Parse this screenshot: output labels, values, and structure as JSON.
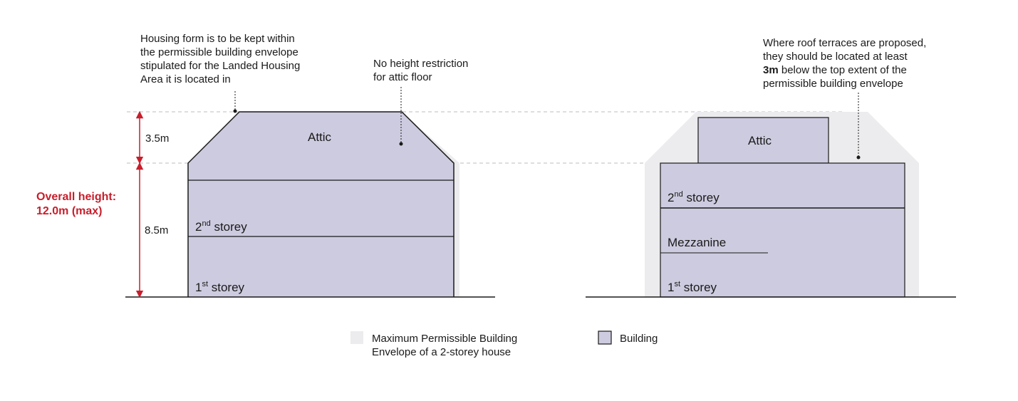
{
  "colors": {
    "envelope": "#ececee",
    "building": "#cdcbdf",
    "outline": "#1a1a1a",
    "dimension": "#c81e2c",
    "guide": "#bdbdbd"
  },
  "left": {
    "note_envelope": [
      "Housing form is to be kept within",
      "the permissible building envelope",
      "stipulated for the Landed Housing",
      "Area it is located in"
    ],
    "note_attic": [
      "No height restriction",
      "for attic floor"
    ],
    "attic": "Attic",
    "second": {
      "num": "2",
      "sup": "nd",
      "word": " storey"
    },
    "first": {
      "num": "1",
      "sup": "st",
      "word": " storey"
    },
    "dim_attic": "3.5m",
    "dim_main": "8.5m",
    "overall": [
      "Overall height:",
      "12.0m (max)"
    ]
  },
  "right": {
    "note_terrace_1": "Where roof terraces are proposed,",
    "note_terrace_2": "they should be located at least",
    "note_terrace_3_bold": "3m",
    "note_terrace_3_rest": " below the top extent of the",
    "note_terrace_4": "permissible building envelope",
    "attic": "Attic",
    "second": {
      "num": "2",
      "sup": "nd",
      "word": " storey"
    },
    "mezzanine": "Mezzanine",
    "first": {
      "num": "1",
      "sup": "st",
      "word": " storey"
    }
  },
  "legend": {
    "envelope": [
      "Maximum Permissible Building",
      "Envelope of a 2-storey house"
    ],
    "building": "Building"
  }
}
